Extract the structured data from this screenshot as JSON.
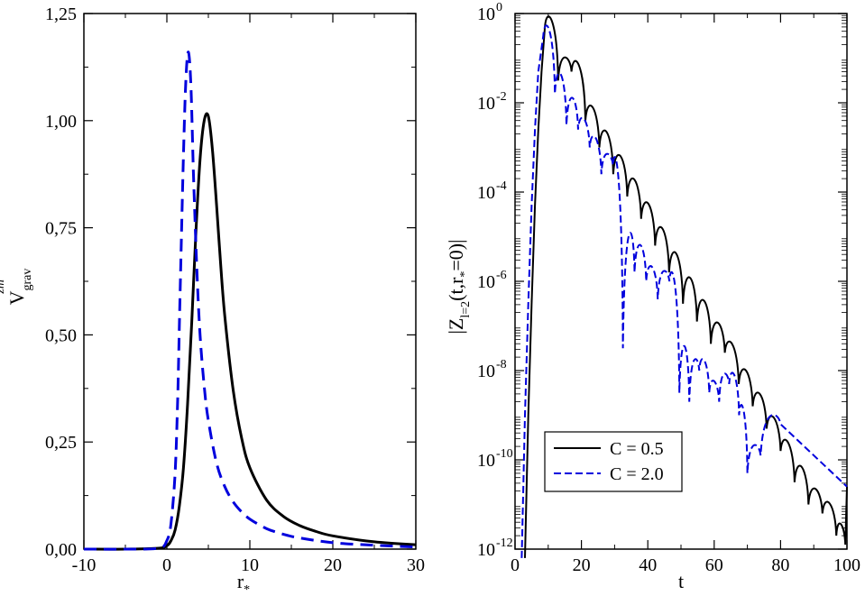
{
  "chart_data": [
    {
      "type": "line",
      "title": "",
      "xlabel": "r",
      "xlabel_sub": "*",
      "ylabel": "V",
      "ylabel_sub": "grav",
      "ylabel_sup": "zm",
      "xlim": [
        -10,
        30
      ],
      "ylim": [
        0,
        1.25
      ],
      "x_ticks": [
        -10,
        0,
        10,
        20,
        30
      ],
      "x_tick_labels": [
        "-10",
        "0",
        "10",
        "20",
        "30"
      ],
      "y_ticks": [
        0,
        0.25,
        0.5,
        0.75,
        1.0,
        1.25
      ],
      "y_tick_labels": [
        "0,00",
        "0,25",
        "0,50",
        "0,75",
        "1,00",
        "1,25"
      ],
      "grid": false,
      "series": [
        {
          "name": "C = 0.5",
          "color": "#000000",
          "style": "solid",
          "x": [
            -10,
            -5,
            -1,
            0,
            0.5,
            1,
            1.5,
            2,
            2.5,
            3,
            3.5,
            4,
            4.5,
            5,
            5.5,
            6,
            6.5,
            7,
            8,
            9,
            10,
            12,
            14,
            16,
            18,
            20,
            25,
            30
          ],
          "y": [
            0,
            0,
            0.002,
            0.008,
            0.02,
            0.045,
            0.1,
            0.19,
            0.34,
            0.53,
            0.74,
            0.91,
            1.0,
            1.01,
            0.93,
            0.8,
            0.66,
            0.54,
            0.37,
            0.26,
            0.19,
            0.115,
            0.077,
            0.055,
            0.041,
            0.031,
            0.017,
            0.01
          ]
        },
        {
          "name": "C = 2.0",
          "color": "#0000dd",
          "style": "dashed",
          "x": [
            -10,
            -5,
            -1,
            0,
            0.5,
            1,
            1.3,
            1.6,
            2,
            2.3,
            2.6,
            2.9,
            3.2,
            3.6,
            4,
            4.5,
            5,
            6,
            7,
            8,
            9,
            10,
            12,
            14,
            16,
            20,
            25,
            30
          ],
          "y": [
            0,
            0,
            0.002,
            0.02,
            0.06,
            0.18,
            0.35,
            0.6,
            0.92,
            1.1,
            1.16,
            1.08,
            0.88,
            0.66,
            0.5,
            0.38,
            0.3,
            0.2,
            0.145,
            0.11,
            0.087,
            0.07,
            0.048,
            0.035,
            0.026,
            0.015,
            0.009,
            0.005
          ]
        }
      ]
    },
    {
      "type": "line",
      "yscale": "log",
      "title": "",
      "xlabel": "t",
      "ylabel": "|Z_{l=2}(t,r_*=0)|",
      "ylabel_parts": {
        "pre": "|Z",
        "sub": "l=2",
        "mid": "(t,r",
        "sub2": "*",
        "post": "=0)|"
      },
      "xlim": [
        0,
        100
      ],
      "ylim_exp": [
        -12,
        0
      ],
      "x_ticks": [
        0,
        20,
        40,
        60,
        80,
        100
      ],
      "x_tick_labels": [
        "0",
        "20",
        "40",
        "60",
        "80",
        "100"
      ],
      "y_tick_exponents": [
        -12,
        -10,
        -8,
        -6,
        -4,
        -2,
        0
      ],
      "y_tick_base": "10",
      "y_tick_sup": [
        "-12",
        "-10",
        "-8",
        "-6",
        "-4",
        "-2",
        "0"
      ],
      "grid": false,
      "legend": {
        "location": "bottom-left",
        "entries": [
          "C = 0.5",
          "C = 2.0"
        ]
      },
      "series": [
        {
          "name": "C = 0.5",
          "color": "#000000",
          "style": "solid",
          "onset_t": 3,
          "peak_t": 9,
          "peak_log": -0.3,
          "decay_per_unit_t": -0.128,
          "period": 4.2,
          "dips": [
            [
              13.0,
              -1.5
            ],
            [
              17.0,
              -1.3
            ],
            [
              21.2,
              -2.4
            ],
            [
              25.4,
              -3.0
            ],
            [
              29.6,
              -3.6
            ],
            [
              33.8,
              -4.1
            ],
            [
              38.0,
              -4.6
            ],
            [
              42.2,
              -5.2
            ],
            [
              46.4,
              -5.8
            ],
            [
              50.6,
              -6.5
            ],
            [
              54.8,
              -6.9
            ],
            [
              59.0,
              -7.4
            ],
            [
              63.2,
              -7.6
            ],
            [
              67.4,
              -8.3
            ],
            [
              71.6,
              -8.8
            ],
            [
              75.8,
              -9.3
            ],
            [
              80.0,
              -9.8
            ],
            [
              84.2,
              -10.5
            ],
            [
              88.4,
              -11.0
            ],
            [
              92.6,
              -11.2
            ],
            [
              96.8,
              -11.7
            ],
            [
              99.5,
              -11.9
            ]
          ],
          "end": [
            100,
            -10.6
          ]
        },
        {
          "name": "C = 2.0",
          "color": "#0000dd",
          "style": "dashed",
          "onset_t": 2,
          "peak_t": 8.5,
          "peak_log": -0.5,
          "decay_per_unit_t": -0.16,
          "period": 3.4,
          "dips": [
            [
              12.0,
              -1.8
            ],
            [
              15.5,
              -2.5
            ],
            [
              19.0,
              -2.6
            ],
            [
              22.5,
              -3.0
            ],
            [
              26.0,
              -3.6
            ],
            [
              29.5,
              -3.4
            ],
            [
              32.5,
              -7.5
            ],
            [
              36.0,
              -5.8
            ],
            [
              39.5,
              -6.0
            ],
            [
              43.0,
              -6.4
            ],
            [
              46.5,
              -6.0
            ],
            [
              49.5,
              -8.5
            ],
            [
              52.5,
              -8.7
            ],
            [
              55.5,
              -8.0
            ],
            [
              58.5,
              -8.5
            ],
            [
              61.5,
              -8.7
            ],
            [
              64.5,
              -8.3
            ],
            [
              67.5,
              -9.0
            ],
            [
              70.0,
              -10.3
            ],
            [
              74.0,
              -9.9
            ],
            [
              80.0,
              -9.2
            ]
          ],
          "end": [
            100,
            -10.6
          ]
        }
      ]
    }
  ]
}
